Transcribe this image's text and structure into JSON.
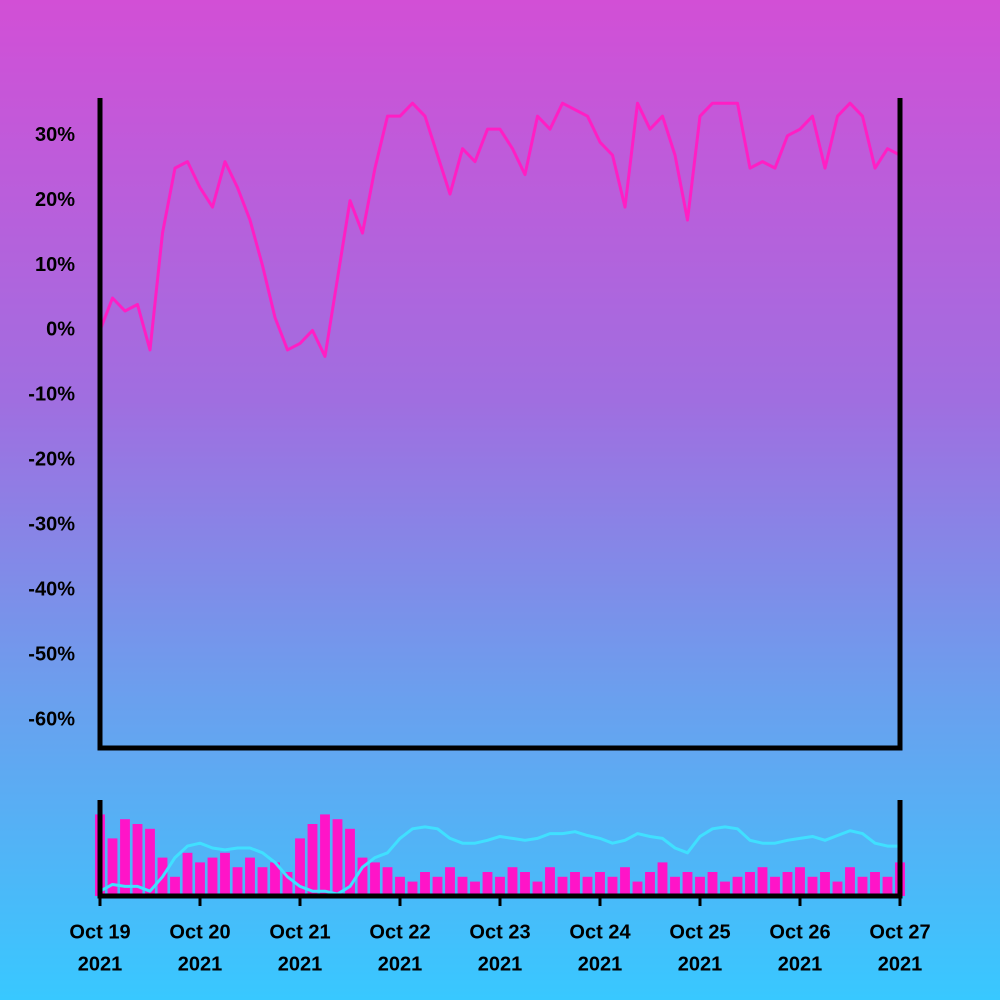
{
  "chart_data": {
    "type": "line",
    "x": [
      "2021-10-19T00:00",
      "2021-10-19T03:00",
      "2021-10-19T06:00",
      "2021-10-19T09:00",
      "2021-10-19T12:00",
      "2021-10-19T15:00",
      "2021-10-19T18:00",
      "2021-10-19T21:00",
      "2021-10-20T00:00",
      "2021-10-20T03:00",
      "2021-10-20T06:00",
      "2021-10-20T09:00",
      "2021-10-20T12:00",
      "2021-10-20T15:00",
      "2021-10-20T18:00",
      "2021-10-20T21:00",
      "2021-10-21T00:00",
      "2021-10-21T03:00",
      "2021-10-21T06:00",
      "2021-10-21T09:00",
      "2021-10-21T12:00",
      "2021-10-21T15:00",
      "2021-10-21T18:00",
      "2021-10-21T21:00",
      "2021-10-22T00:00",
      "2021-10-22T03:00",
      "2021-10-22T06:00",
      "2021-10-22T09:00",
      "2021-10-22T12:00",
      "2021-10-22T15:00",
      "2021-10-22T18:00",
      "2021-10-22T21:00",
      "2021-10-23T00:00",
      "2021-10-23T03:00",
      "2021-10-23T06:00",
      "2021-10-23T09:00",
      "2021-10-23T12:00",
      "2021-10-23T15:00",
      "2021-10-23T18:00",
      "2021-10-23T21:00",
      "2021-10-24T00:00",
      "2021-10-24T03:00",
      "2021-10-24T06:00",
      "2021-10-24T09:00",
      "2021-10-24T12:00",
      "2021-10-24T15:00",
      "2021-10-24T18:00",
      "2021-10-24T21:00",
      "2021-10-25T00:00",
      "2021-10-25T03:00",
      "2021-10-25T06:00",
      "2021-10-25T09:00",
      "2021-10-25T12:00",
      "2021-10-25T15:00",
      "2021-10-25T18:00",
      "2021-10-25T21:00",
      "2021-10-26T00:00",
      "2021-10-26T03:00",
      "2021-10-26T06:00",
      "2021-10-26T09:00",
      "2021-10-26T12:00",
      "2021-10-26T15:00",
      "2021-10-26T18:00",
      "2021-10-26T21:00",
      "2021-10-27T00:00"
    ],
    "xlim": [
      "2021-10-19T00:00",
      "2021-10-27T00:00"
    ],
    "xticks": [
      {
        "value": "2021-10-19T00:00",
        "label": [
          "Oct 19",
          "2021"
        ]
      },
      {
        "value": "2021-10-20T00:00",
        "label": [
          "Oct 20",
          "2021"
        ]
      },
      {
        "value": "2021-10-21T00:00",
        "label": [
          "Oct 21",
          "2021"
        ]
      },
      {
        "value": "2021-10-22T00:00",
        "label": [
          "Oct 22",
          "2021"
        ]
      },
      {
        "value": "2021-10-23T00:00",
        "label": [
          "Oct 23",
          "2021"
        ]
      },
      {
        "value": "2021-10-24T00:00",
        "label": [
          "Oct 24",
          "2021"
        ]
      },
      {
        "value": "2021-10-25T00:00",
        "label": [
          "Oct 25",
          "2021"
        ]
      },
      {
        "value": "2021-10-26T00:00",
        "label": [
          "Oct 26",
          "2021"
        ]
      },
      {
        "value": "2021-10-27T00:00",
        "label": [
          "Oct 27",
          "2021"
        ]
      }
    ],
    "ylim": [
      -64.3,
      35.8
    ],
    "yticks": [
      {
        "value": 30,
        "label": "30%"
      },
      {
        "value": 20,
        "label": "20%"
      },
      {
        "value": 10,
        "label": "10%"
      },
      {
        "value": 0,
        "label": "0%"
      },
      {
        "value": -10,
        "label": "-10%"
      },
      {
        "value": -20,
        "label": "-20%"
      },
      {
        "value": -30,
        "label": "-30%"
      },
      {
        "value": -40,
        "label": "-40%"
      },
      {
        "value": -50,
        "label": "-50%"
      },
      {
        "value": -60,
        "label": "-60%"
      }
    ],
    "y2lim": [
      0,
      100
    ],
    "series": [
      {
        "color": "#ff1ec4",
        "axis": "y",
        "values": [
          0,
          5,
          3,
          4,
          -3,
          15,
          25,
          26,
          22,
          19,
          26,
          22,
          17,
          10,
          2,
          -3,
          -2,
          0,
          -4,
          8,
          20,
          15,
          25,
          33,
          33,
          35,
          33,
          27,
          21,
          28,
          26,
          31,
          31,
          28,
          24,
          33,
          31,
          35,
          34,
          33,
          29,
          27,
          19,
          35,
          31,
          33,
          27,
          17,
          33,
          35,
          35,
          35,
          25,
          26,
          25,
          30,
          31,
          33,
          25,
          33,
          35,
          33,
          25,
          28,
          27
        ]
      },
      {
        "color": "#ff14c8",
        "axis": "y2",
        "type": "bar",
        "values": [
          85,
          60,
          80,
          75,
          70,
          40,
          20,
          45,
          35,
          40,
          45,
          30,
          40,
          30,
          35,
          25,
          60,
          75,
          85,
          80,
          70,
          40,
          35,
          30,
          20,
          15,
          25,
          20,
          30,
          20,
          15,
          25,
          20,
          30,
          25,
          15,
          30,
          20,
          25,
          20,
          25,
          20,
          30,
          15,
          25,
          35,
          20,
          25,
          20,
          25,
          15,
          20,
          25,
          30,
          20,
          25,
          30,
          20,
          25,
          15,
          30,
          20,
          25,
          20,
          35
        ]
      },
      {
        "color": "#40e0ff",
        "axis": "y2",
        "values": [
          5,
          12,
          10,
          10,
          5,
          20,
          40,
          52,
          55,
          50,
          48,
          50,
          50,
          45,
          35,
          20,
          10,
          5,
          5,
          2,
          10,
          30,
          40,
          45,
          60,
          70,
          72,
          70,
          60,
          55,
          55,
          58,
          62,
          60,
          58,
          60,
          65,
          65,
          67,
          63,
          60,
          55,
          58,
          65,
          62,
          60,
          50,
          45,
          62,
          70,
          72,
          70,
          58,
          55,
          55,
          58,
          60,
          62,
          58,
          63,
          68,
          65,
          55,
          52,
          52
        ]
      }
    ]
  }
}
